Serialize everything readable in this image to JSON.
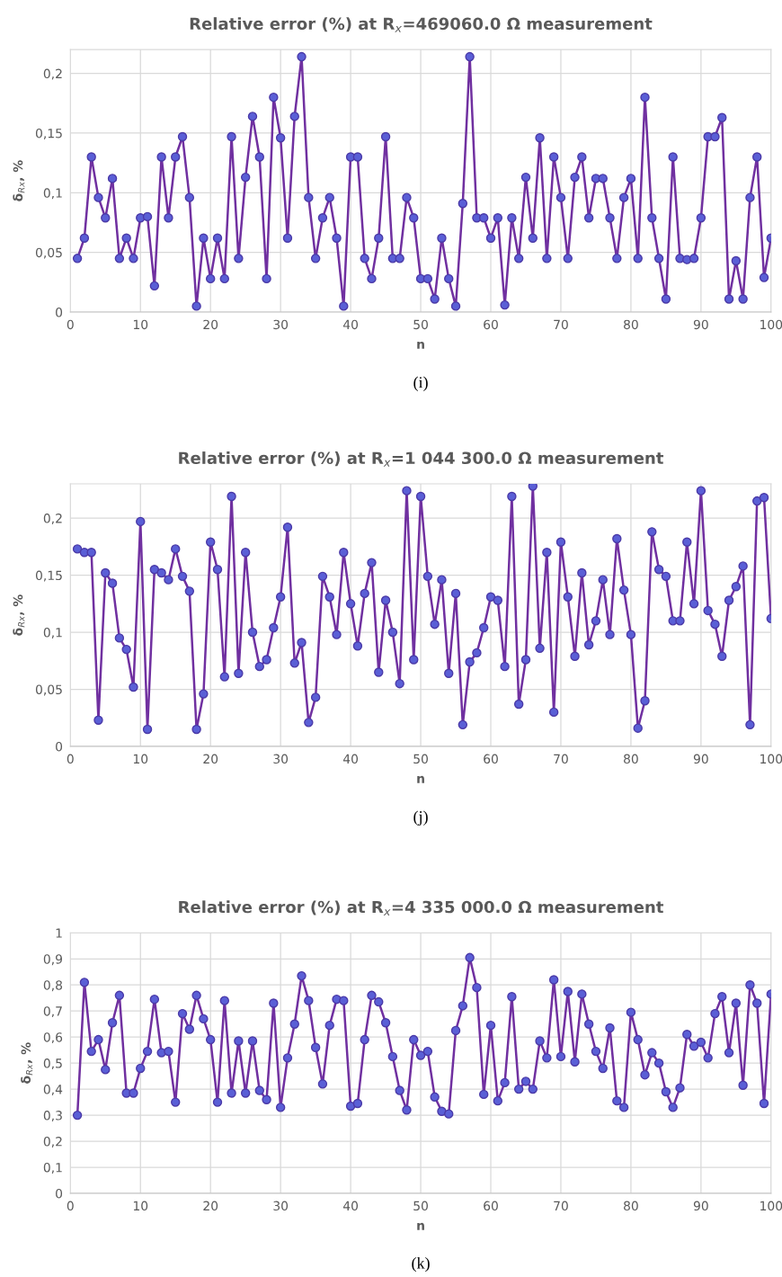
{
  "chart_data": [
    {
      "type": "line",
      "title": "Relative error (%) at R$_{x}$=469060.0 Ω measurement",
      "xlabel": "n",
      "ylabel": "δ$_{Rx}$, %",
      "annotations": [
        "(i)"
      ],
      "x": [
        1,
        2,
        3,
        4,
        5,
        6,
        7,
        8,
        9,
        10,
        11,
        12,
        13,
        14,
        15,
        16,
        17,
        18,
        19,
        20,
        21,
        22,
        23,
        24,
        25,
        26,
        27,
        28,
        29,
        30,
        31,
        32,
        33,
        34,
        35,
        36,
        37,
        38,
        39,
        40,
        41,
        42,
        43,
        44,
        45,
        46,
        47,
        48,
        49,
        50,
        51,
        52,
        53,
        54,
        55,
        56,
        57,
        58,
        59,
        60,
        61,
        62,
        63,
        64,
        65,
        66,
        67,
        68,
        69,
        70,
        71,
        72,
        73,
        74,
        75,
        76,
        77,
        78,
        79,
        80,
        81,
        82,
        83,
        84,
        85,
        86,
        87,
        88,
        89,
        90,
        91,
        92,
        93,
        94,
        95,
        96,
        97,
        98,
        99,
        100
      ],
      "series": [
        {
          "color": "#7030a0",
          "values": [
            0.045,
            0.062,
            0.13,
            0.096,
            0.079,
            0.112,
            0.045,
            0.062,
            0.045,
            0.079,
            0.08,
            0.022,
            0.13,
            0.079,
            0.13,
            0.147,
            0.096,
            0.005,
            0.062,
            0.028,
            0.062,
            0.028,
            0.147,
            0.045,
            0.113,
            0.164,
            0.13,
            0.028,
            0.18,
            0.146,
            0.062,
            0.164,
            0.214,
            0.096,
            0.045,
            0.079,
            0.096,
            0.062,
            0.005,
            0.13,
            0.13,
            0.045,
            0.028,
            0.062,
            0.147,
            0.045,
            0.045,
            0.096,
            0.079,
            0.028,
            0.028,
            0.011,
            0.062,
            0.028,
            0.005,
            0.091,
            0.214,
            0.079,
            0.079,
            0.062,
            0.079,
            0.006,
            0.079,
            0.045,
            0.113,
            0.062,
            0.146,
            0.045,
            0.13,
            0.096,
            0.045,
            0.113,
            0.13,
            0.079,
            0.112,
            0.112,
            0.079,
            0.045,
            0.096,
            0.112,
            0.045,
            0.18,
            0.079,
            0.045,
            0.011,
            0.13,
            0.045,
            0.044,
            0.045,
            0.079,
            0.147,
            0.147,
            0.163,
            0.011,
            0.043,
            0.011,
            0.096,
            0.13,
            0.029,
            0.062
          ]
        }
      ],
      "xlim": [
        0,
        100
      ],
      "xticks": [
        0,
        10,
        20,
        30,
        40,
        50,
        60,
        70,
        80,
        90,
        100
      ],
      "ylim": [
        0,
        0.22
      ],
      "yticks": [
        {
          "value": 0,
          "label": "0"
        },
        {
          "value": 0.05,
          "label": "0,05"
        },
        {
          "value": 0.1,
          "label": "0,1"
        },
        {
          "value": 0.15,
          "label": "0,15"
        },
        {
          "value": 0.2,
          "label": "0,2"
        }
      ],
      "grid": true,
      "marker": "circle",
      "line_style": "solid",
      "legend": false
    },
    {
      "type": "line",
      "title": "Relative error (%) at R$_{x}$=1 044 300.0 Ω measurement",
      "xlabel": "n",
      "ylabel": "δ$_{Rx}$, %",
      "annotations": [
        "(j)"
      ],
      "x": [
        1,
        2,
        3,
        4,
        5,
        6,
        7,
        8,
        9,
        10,
        11,
        12,
        13,
        14,
        15,
        16,
        17,
        18,
        19,
        20,
        21,
        22,
        23,
        24,
        25,
        26,
        27,
        28,
        29,
        30,
        31,
        32,
        33,
        34,
        35,
        36,
        37,
        38,
        39,
        40,
        41,
        42,
        43,
        44,
        45,
        46,
        47,
        48,
        49,
        50,
        51,
        52,
        53,
        54,
        55,
        56,
        57,
        58,
        59,
        60,
        61,
        62,
        63,
        64,
        65,
        66,
        67,
        68,
        69,
        70,
        71,
        72,
        73,
        74,
        75,
        76,
        77,
        78,
        79,
        80,
        81,
        82,
        83,
        84,
        85,
        86,
        87,
        88,
        89,
        90,
        91,
        92,
        93,
        94,
        95,
        96,
        97,
        98,
        99,
        100
      ],
      "series": [
        {
          "color": "#7030a0",
          "values": [
            0.173,
            0.17,
            0.17,
            0.023,
            0.152,
            0.143,
            0.095,
            0.085,
            0.052,
            0.197,
            0.015,
            0.155,
            0.152,
            0.146,
            0.173,
            0.149,
            0.136,
            0.015,
            0.046,
            0.179,
            0.155,
            0.061,
            0.219,
            0.064,
            0.17,
            0.1,
            0.07,
            0.076,
            0.104,
            0.131,
            0.192,
            0.073,
            0.091,
            0.021,
            0.043,
            0.149,
            0.131,
            0.098,
            0.17,
            0.125,
            0.088,
            0.134,
            0.161,
            0.065,
            0.128,
            0.1,
            0.055,
            0.224,
            0.076,
            0.219,
            0.149,
            0.107,
            0.146,
            0.064,
            0.134,
            0.019,
            0.074,
            0.082,
            0.104,
            0.131,
            0.128,
            0.07,
            0.219,
            0.037,
            0.076,
            0.228,
            0.086,
            0.17,
            0.03,
            0.179,
            0.131,
            0.079,
            0.152,
            0.089,
            0.11,
            0.146,
            0.098,
            0.182,
            0.137,
            0.098,
            0.016,
            0.04,
            0.188,
            0.155,
            0.149,
            0.11,
            0.11,
            0.179,
            0.125,
            0.224,
            0.119,
            0.107,
            0.079,
            0.128,
            0.14,
            0.158,
            0.019,
            0.215,
            0.218,
            0.112
          ]
        }
      ],
      "xlim": [
        0,
        100
      ],
      "xticks": [
        0,
        10,
        20,
        30,
        40,
        50,
        60,
        70,
        80,
        90,
        100
      ],
      "ylim": [
        0,
        0.23
      ],
      "yticks": [
        {
          "value": 0,
          "label": "0"
        },
        {
          "value": 0.05,
          "label": "0,05"
        },
        {
          "value": 0.1,
          "label": "0,1"
        },
        {
          "value": 0.15,
          "label": "0,15"
        },
        {
          "value": 0.2,
          "label": "0,2"
        }
      ],
      "grid": true,
      "marker": "circle",
      "line_style": "solid",
      "legend": false
    },
    {
      "type": "line",
      "title": "Relative error (%) at R$_{x}$=4 335 000.0 Ω measurement",
      "xlabel": "n",
      "ylabel": "δ$_{Rx}$, %",
      "annotations": [
        "(k)"
      ],
      "x": [
        1,
        2,
        3,
        4,
        5,
        6,
        7,
        8,
        9,
        10,
        11,
        12,
        13,
        14,
        15,
        16,
        17,
        18,
        19,
        20,
        21,
        22,
        23,
        24,
        25,
        26,
        27,
        28,
        29,
        30,
        31,
        32,
        33,
        34,
        35,
        36,
        37,
        38,
        39,
        40,
        41,
        42,
        43,
        44,
        45,
        46,
        47,
        48,
        49,
        50,
        51,
        52,
        53,
        54,
        55,
        56,
        57,
        58,
        59,
        60,
        61,
        62,
        63,
        64,
        65,
        66,
        67,
        68,
        69,
        70,
        71,
        72,
        73,
        74,
        75,
        76,
        77,
        78,
        79,
        80,
        81,
        82,
        83,
        84,
        85,
        86,
        87,
        88,
        89,
        90,
        91,
        92,
        93,
        94,
        95,
        96,
        97,
        98,
        99,
        100
      ],
      "series": [
        {
          "color": "#7030a0",
          "values": [
            0.3,
            0.81,
            0.545,
            0.59,
            0.475,
            0.655,
            0.76,
            0.385,
            0.385,
            0.48,
            0.545,
            0.745,
            0.54,
            0.545,
            0.35,
            0.69,
            0.63,
            0.76,
            0.67,
            0.59,
            0.35,
            0.74,
            0.385,
            0.585,
            0.385,
            0.585,
            0.395,
            0.36,
            0.73,
            0.33,
            0.52,
            0.65,
            0.835,
            0.74,
            0.56,
            0.42,
            0.645,
            0.745,
            0.74,
            0.335,
            0.345,
            0.59,
            0.76,
            0.735,
            0.655,
            0.525,
            0.395,
            0.32,
            0.59,
            0.53,
            0.545,
            0.37,
            0.315,
            0.305,
            0.625,
            0.72,
            0.905,
            0.79,
            0.38,
            0.645,
            0.355,
            0.425,
            0.755,
            0.4,
            0.43,
            0.4,
            0.585,
            0.52,
            0.82,
            0.525,
            0.775,
            0.505,
            0.765,
            0.65,
            0.545,
            0.48,
            0.635,
            0.355,
            0.33,
            0.695,
            0.59,
            0.455,
            0.54,
            0.5,
            0.39,
            0.33,
            0.405,
            0.61,
            0.565,
            0.58,
            0.52,
            0.69,
            0.755,
            0.54,
            0.73,
            0.415,
            0.8,
            0.73,
            0.345,
            0.765
          ]
        }
      ],
      "xlim": [
        0,
        100
      ],
      "xticks": [
        0,
        10,
        20,
        30,
        40,
        50,
        60,
        70,
        80,
        90,
        100
      ],
      "ylim": [
        0,
        1
      ],
      "yticks": [
        {
          "value": 0,
          "label": "0"
        },
        {
          "value": 0.1,
          "label": "0,1"
        },
        {
          "value": 0.2,
          "label": "0,2"
        },
        {
          "value": 0.3,
          "label": "0,3"
        },
        {
          "value": 0.4,
          "label": "0,4"
        },
        {
          "value": 0.5,
          "label": "0,5"
        },
        {
          "value": 0.6,
          "label": "0,6"
        },
        {
          "value": 0.7,
          "label": "0,7"
        },
        {
          "value": 0.8,
          "label": "0,8"
        },
        {
          "value": 0.9,
          "label": "0,9"
        },
        {
          "value": 1,
          "label": "1"
        }
      ],
      "grid": true,
      "marker": "circle",
      "line_style": "solid",
      "legend": false
    }
  ]
}
